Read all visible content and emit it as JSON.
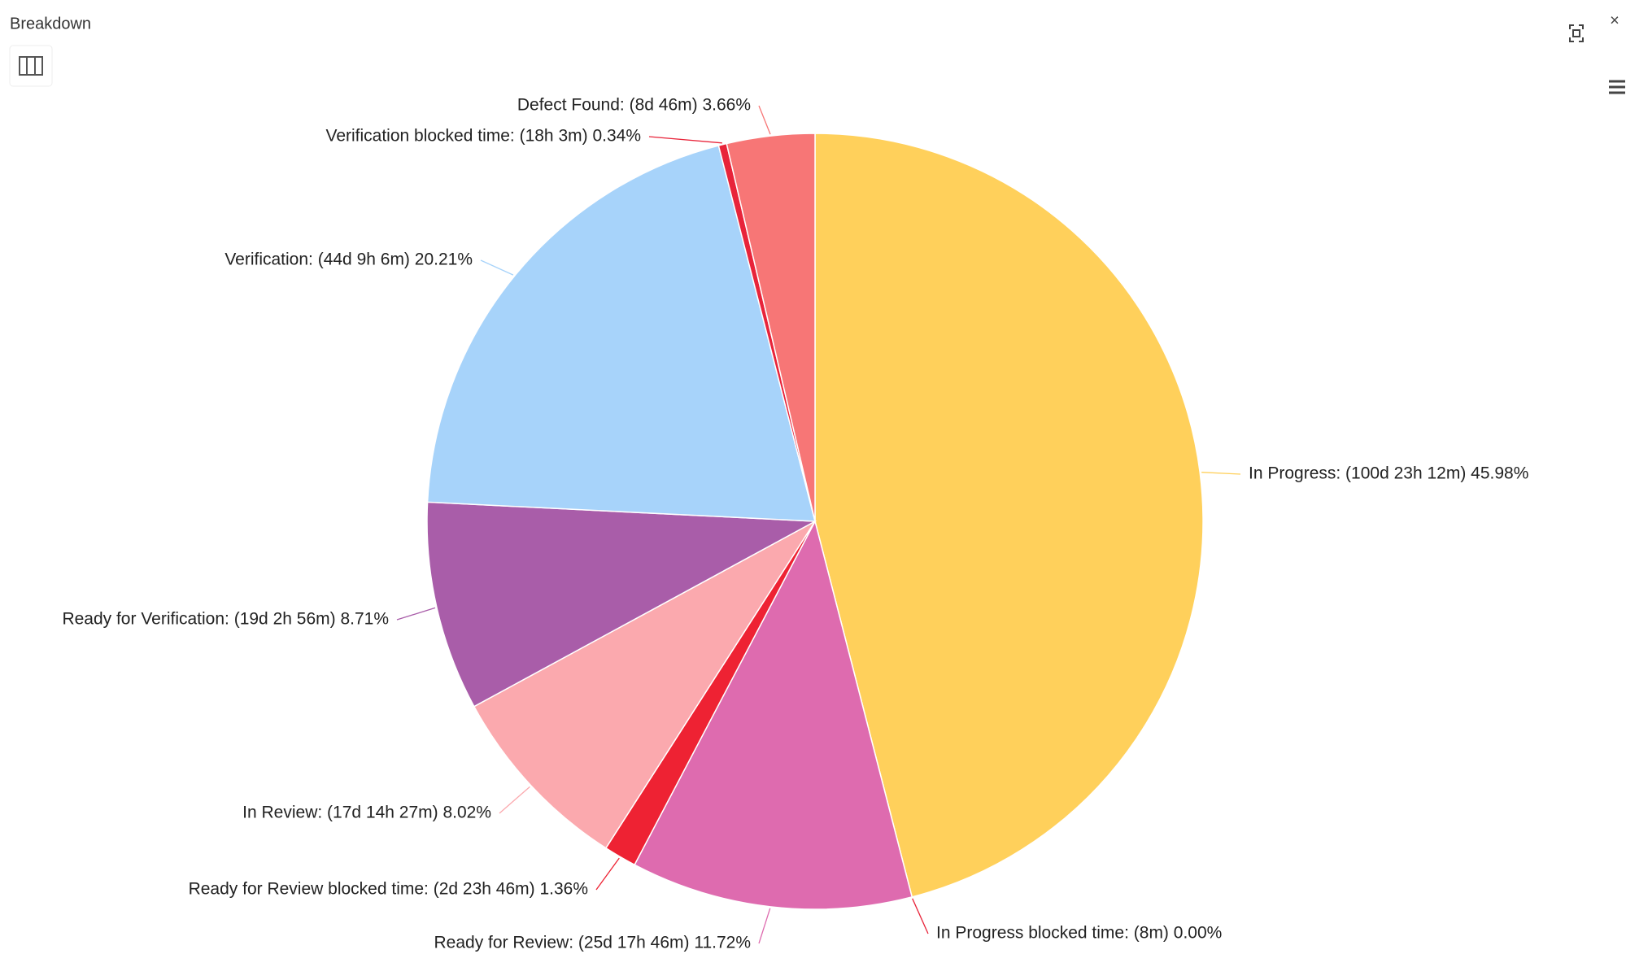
{
  "header": {
    "title": "Breakdown",
    "close": "×"
  },
  "chart_data": {
    "type": "pie",
    "categories": [
      "In Progress",
      "In Progress blocked time",
      "Ready for Review",
      "Ready for Review blocked time",
      "In Review",
      "Ready for Verification",
      "Verification",
      "Verification blocked time",
      "Defect Found"
    ],
    "values": [
      45.98,
      0.0,
      11.72,
      1.36,
      8.02,
      8.71,
      20.21,
      0.34,
      3.66
    ],
    "value_labels": [
      "In Progress: (100d 23h 12m) 45.98%",
      "In Progress blocked time: (8m) 0.00%",
      "Ready for Review: (25d 17h 46m) 11.72%",
      "Ready for Review blocked time: (2d 23h 46m) 1.36%",
      "In Review: (17d 14h 27m) 8.02%",
      "Ready for Verification: (19d 2h 56m) 8.71%",
      "Verification: (44d 9h 6m) 20.21%",
      "Verification blocked time: (18h 3m) 0.34%",
      "Defect Found: (8d 46m) 3.66%"
    ],
    "colors": [
      "#FFD05B",
      "#E8243A",
      "#DE6BAF",
      "#EE2233",
      "#FBA9AE",
      "#A95DA9",
      "#A7D3FA",
      "#E8243A",
      "#F77676"
    ]
  }
}
